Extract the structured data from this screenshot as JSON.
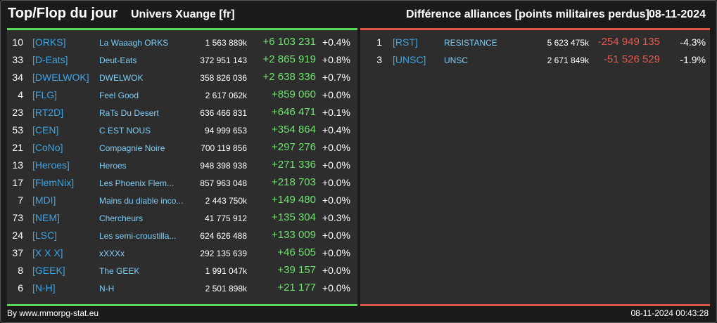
{
  "header": {
    "title": "Top/Flop du jour",
    "universe": "Univers Xuange [fr]",
    "subtitle": "Différence alliances [points militaires perdus]",
    "date": "08-11-2024"
  },
  "colors": {
    "positive": "#6ee36e",
    "negative": "#e8574e",
    "tag": "#3aa5e6",
    "name": "#7fcdf5",
    "top_bar": "#59d959",
    "flop_bar": "#e0554a"
  },
  "top": [
    {
      "rank": "10",
      "tag": "[ORKS]",
      "name": "La Waaagh ORKS",
      "points": "1 563 889k",
      "delta": "+6 103 231",
      "pct": "+0.4%"
    },
    {
      "rank": "33",
      "tag": "[D-Eats]",
      "name": "Deut-Eats",
      "points": "372 951 143",
      "delta": "+2 865 919",
      "pct": "+0.8%"
    },
    {
      "rank": "34",
      "tag": "[DWELWOK]",
      "name": "DWELWOK",
      "points": "358 826 036",
      "delta": "+2 638 336",
      "pct": "+0.7%"
    },
    {
      "rank": "4",
      "tag": "[FLG]",
      "name": "Feel Good",
      "points": "2 617 062k",
      "delta": "+859 060",
      "pct": "+0.0%"
    },
    {
      "rank": "23",
      "tag": "[RT2D]",
      "name": "RaTs Du Desert",
      "points": "636 466 831",
      "delta": "+646 471",
      "pct": "+0.1%"
    },
    {
      "rank": "53",
      "tag": "[CEN]",
      "name": "C EST NOUS",
      "points": "94 999 653",
      "delta": "+354 864",
      "pct": "+0.4%"
    },
    {
      "rank": "21",
      "tag": "[CoNo]",
      "name": "Compagnie Noire",
      "points": "700 119 856",
      "delta": "+297 276",
      "pct": "+0.0%"
    },
    {
      "rank": "13",
      "tag": "[Heroes]",
      "name": "Heroes",
      "points": "948 398 938",
      "delta": "+271 336",
      "pct": "+0.0%"
    },
    {
      "rank": "17",
      "tag": "[FlemNix]",
      "name": "Les Phoenix Flem...",
      "points": "857 963 048",
      "delta": "+218 703",
      "pct": "+0.0%"
    },
    {
      "rank": "7",
      "tag": "[MDI]",
      "name": "Mains du diable inco...",
      "points": "2 443 750k",
      "delta": "+149 480",
      "pct": "+0.0%"
    },
    {
      "rank": "73",
      "tag": "[NEM]",
      "name": "Chercheurs",
      "points": "41 775 912",
      "delta": "+135 304",
      "pct": "+0.3%"
    },
    {
      "rank": "24",
      "tag": "[LSC]",
      "name": "Les semi-croustilla...",
      "points": "624 626 488",
      "delta": "+133 009",
      "pct": "+0.0%"
    },
    {
      "rank": "37",
      "tag": "[X X X]",
      "name": "xXXXx",
      "points": "292 135 639",
      "delta": "+46 505",
      "pct": "+0.0%"
    },
    {
      "rank": "8",
      "tag": "[GEEK]",
      "name": "The GEEK",
      "points": "1 991 047k",
      "delta": "+39 157",
      "pct": "+0.0%"
    },
    {
      "rank": "6",
      "tag": "[N-H]",
      "name": "N-H",
      "points": "2 501 898k",
      "delta": "+21 177",
      "pct": "+0.0%"
    }
  ],
  "flop": [
    {
      "rank": "1",
      "tag": "[RST]",
      "name": "RESISTANCE",
      "points": "5 623 475k",
      "delta": "-254 949 135",
      "pct": "-4.3%"
    },
    {
      "rank": "3",
      "tag": "[UNSC]",
      "name": "UNSC",
      "points": "2 671 849k",
      "delta": "-51 526 529",
      "pct": "-1.9%"
    }
  ],
  "footer": {
    "credit": "By www.mmorpg-stat.eu",
    "timestamp": "08-11-2024 00:43:28"
  }
}
